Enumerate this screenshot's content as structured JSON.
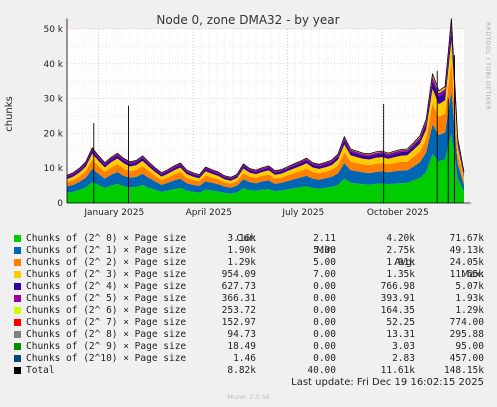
{
  "title": "Node 0, zone DMA32 - by year",
  "ylabel": "chunks",
  "side_text": "RRDTOOL / TOBI OETIKER",
  "legend_headers": {
    "cur": "Cur:",
    "min": "Min:",
    "avg": "Avg:",
    "max": "Max:"
  },
  "legend": [
    {
      "name": "Chunks of (2^ 0) × Page size",
      "color": "#00cc00",
      "cur": "3.16k",
      "min": "2.11",
      "avg": "4.20k",
      "max": "71.67k"
    },
    {
      "name": "Chunks of (2^ 1) × Page size",
      "color": "#0066b3",
      "cur": "1.90k",
      "min": "5.00",
      "avg": "2.75k",
      "max": "49.13k"
    },
    {
      "name": "Chunks of (2^ 2) × Page size",
      "color": "#ff8000",
      "cur": "1.29k",
      "min": "5.00",
      "avg": "1.91k",
      "max": "24.05k"
    },
    {
      "name": "Chunks of (2^ 3) × Page size",
      "color": "#ffcc00",
      "cur": "954.09",
      "min": "7.00",
      "avg": "1.35k",
      "max": "11.65k"
    },
    {
      "name": "Chunks of (2^ 4) × Page size",
      "color": "#330099",
      "cur": "627.73",
      "min": "0.00",
      "avg": "766.98",
      "max": "5.07k"
    },
    {
      "name": "Chunks of (2^ 5) × Page size",
      "color": "#990099",
      "cur": "366.31",
      "min": "0.00",
      "avg": "393.91",
      "max": "1.93k"
    },
    {
      "name": "Chunks of (2^ 6) × Page size",
      "color": "#ccff00",
      "cur": "253.72",
      "min": "0.00",
      "avg": "164.35",
      "max": "1.29k"
    },
    {
      "name": "Chunks of (2^ 7) × Page size",
      "color": "#ff0000",
      "cur": "152.97",
      "min": "0.00",
      "avg": "52.25",
      "max": "774.00"
    },
    {
      "name": "Chunks of (2^ 8) × Page size",
      "color": "#808080",
      "cur": "94.73",
      "min": "0.00",
      "avg": "13.31",
      "max": "295.88"
    },
    {
      "name": "Chunks of (2^ 9) × Page size",
      "color": "#008f00",
      "cur": "18.49",
      "min": "0.00",
      "avg": "3.03",
      "max": "95.00"
    },
    {
      "name": "Chunks of (2^10) × Page size",
      "color": "#00487d",
      "cur": "1.46",
      "min": "0.00",
      "avg": "2.83",
      "max": "457.00"
    },
    {
      "name": "Total",
      "color": "#000000",
      "cur": "8.82k",
      "min": "40.00",
      "avg": "11.61k",
      "max": "148.15k"
    }
  ],
  "last_update": "Last update: Fri Dec 19 16:02:15 2025",
  "footer": "Munin 2.0.56",
  "chart_data": {
    "type": "area",
    "title": "Node 0, zone DMA32 - by year",
    "ylabel": "chunks",
    "ylim": [
      0,
      50000
    ],
    "yticks": [
      0,
      10000,
      20000,
      30000,
      40000,
      50000
    ],
    "ytick_labels": [
      "0",
      "10 k",
      "20 k",
      "30 k",
      "40 k",
      "50 k"
    ],
    "xlim_months": [
      0,
      12.6
    ],
    "xticks": [
      {
        "label": "January 2025",
        "month": 1.5
      },
      {
        "label": "April 2025",
        "month": 4.5
      },
      {
        "label": "July 2025",
        "month": 7.5
      },
      {
        "label": "October 2025",
        "month": 10.5
      }
    ],
    "x_months": [
      0,
      0.2,
      0.4,
      0.6,
      0.8,
      1.0,
      1.2,
      1.4,
      1.6,
      1.8,
      2.0,
      2.2,
      2.4,
      2.6,
      2.8,
      3.0,
      3.2,
      3.4,
      3.6,
      3.8,
      4.0,
      4.2,
      4.4,
      4.6,
      4.8,
      5.0,
      5.2,
      5.4,
      5.6,
      5.8,
      6.0,
      6.2,
      6.4,
      6.6,
      6.8,
      7.0,
      7.2,
      7.4,
      7.6,
      7.8,
      8.0,
      8.2,
      8.4,
      8.6,
      8.8,
      9.0,
      9.2,
      9.4,
      9.6,
      9.8,
      10.0,
      10.2,
      10.4,
      10.6,
      10.8,
      11.0,
      11.2,
      11.4,
      11.6,
      11.8,
      12.0,
      12.2,
      12.4,
      12.6
    ],
    "series": [
      {
        "name": "Chunks of (2^ 0) × Page size",
        "color": "#00cc00",
        "values": [
          3000,
          3200,
          3800,
          4500,
          6000,
          5200,
          4300,
          5000,
          5500,
          4800,
          4500,
          4600,
          5200,
          4400,
          3800,
          3200,
          3600,
          4000,
          4300,
          3500,
          3200,
          3000,
          3800,
          3600,
          3300,
          2900,
          2700,
          3100,
          4200,
          3700,
          3500,
          3800,
          4000,
          3400,
          3600,
          3900,
          4200,
          4500,
          4800,
          4300,
          4100,
          4400,
          4600,
          5200,
          7000,
          5800,
          5600,
          5400,
          5300,
          5500,
          5600,
          5400,
          5600,
          5700,
          5800,
          6500,
          7200,
          9000,
          14000,
          12000,
          12500,
          20000,
          7000,
          3200
        ]
      },
      {
        "name": "Chunks of (2^ 1) × Page size",
        "color": "#0066b3",
        "values": [
          1800,
          2000,
          2300,
          2800,
          3800,
          3200,
          2700,
          3100,
          3400,
          3000,
          2800,
          2900,
          3200,
          2800,
          2400,
          2000,
          2200,
          2500,
          2700,
          2200,
          2000,
          1900,
          2400,
          2200,
          2100,
          1800,
          1700,
          1900,
          2600,
          2300,
          2200,
          2400,
          2500,
          2100,
          2200,
          2400,
          2600,
          2800,
          3000,
          2700,
          2600,
          2700,
          2900,
          3300,
          4500,
          3600,
          3500,
          3400,
          3300,
          3400,
          3500,
          3400,
          3500,
          3600,
          3600,
          4000,
          4500,
          5600,
          8600,
          7500,
          7800,
          12300,
          4300,
          1900
        ]
      },
      {
        "name": "Chunks of (2^ 2) × Page size",
        "color": "#ff8000",
        "values": [
          1200,
          1400,
          1600,
          1900,
          2600,
          2200,
          1900,
          2100,
          2300,
          2100,
          1900,
          2000,
          2200,
          1900,
          1600,
          1400,
          1500,
          1700,
          1900,
          1500,
          1400,
          1300,
          1700,
          1500,
          1400,
          1200,
          1200,
          1300,
          1800,
          1600,
          1500,
          1600,
          1700,
          1500,
          1500,
          1700,
          1800,
          1900,
          2100,
          1900,
          1800,
          1900,
          2000,
          2300,
          3100,
          2500,
          2400,
          2300,
          2300,
          2400,
          2400,
          2300,
          2400,
          2500,
          2500,
          2800,
          3100,
          3900,
          6000,
          5200,
          5400,
          8500,
          3000,
          1300
        ]
      },
      {
        "name": "Chunks of (2^ 3) × Page size",
        "color": "#ffcc00",
        "values": [
          900,
          1000,
          1100,
          1300,
          1800,
          1500,
          1300,
          1500,
          1600,
          1500,
          1300,
          1400,
          1500,
          1300,
          1100,
          1000,
          1100,
          1200,
          1300,
          1100,
          1000,
          900,
          1200,
          1100,
          1000,
          900,
          800,
          900,
          1300,
          1100,
          1100,
          1100,
          1200,
          1100,
          1100,
          1200,
          1300,
          1400,
          1500,
          1300,
          1300,
          1300,
          1400,
          1600,
          2200,
          1800,
          1700,
          1600,
          1600,
          1700,
          1700,
          1600,
          1700,
          1800,
          1800,
          2000,
          2200,
          2700,
          4200,
          3700,
          3800,
          6000,
          2100,
          950
        ]
      },
      {
        "name": "Chunks of (2^ 4) × Page size",
        "color": "#330099",
        "values": [
          600,
          650,
          700,
          800,
          1000,
          900,
          800,
          850,
          900,
          850,
          800,
          800,
          850,
          780,
          700,
          650,
          680,
          720,
          760,
          680,
          620,
          600,
          720,
          680,
          640,
          580,
          560,
          600,
          780,
          700,
          680,
          700,
          740,
          680,
          680,
          720,
          780,
          820,
          880,
          800,
          780,
          800,
          840,
          950,
          1300,
          1050,
          1000,
          950,
          940,
          980,
          1000,
          950,
          1000,
          1050,
          1050,
          1150,
          1300,
          1600,
          2500,
          2200,
          2300,
          3500,
          1200,
          630
        ]
      },
      {
        "name": "Chunks of (2^ 5) × Page size",
        "color": "#990099",
        "values": [
          350,
          360,
          380,
          400,
          450,
          420,
          400,
          410,
          430,
          410,
          400,
          400,
          420,
          390,
          370,
          350,
          360,
          380,
          390,
          360,
          340,
          330,
          370,
          360,
          350,
          330,
          320,
          330,
          380,
          360,
          360,
          370,
          380,
          360,
          360,
          380,
          400,
          410,
          440,
          400,
          400,
          410,
          420,
          470,
          600,
          500,
          480,
          460,
          460,
          470,
          480,
          460,
          480,
          500,
          500,
          540,
          600,
          750,
          1100,
          950,
          1000,
          1500,
          560,
          370
        ]
      },
      {
        "name": "Chunks of (2^ 6) × Page size",
        "color": "#ccff00",
        "values": [
          60,
          70,
          80,
          90,
          130,
          110,
          100,
          110,
          120,
          110,
          100,
          100,
          110,
          100,
          90,
          80,
          90,
          95,
          100,
          90,
          80,
          80,
          95,
          90,
          85,
          80,
          75,
          80,
          100,
          90,
          90,
          95,
          100,
          90,
          90,
          100,
          110,
          115,
          130,
          115,
          110,
          115,
          120,
          150,
          220,
          180,
          170,
          160,
          160,
          170,
          170,
          160,
          170,
          180,
          190,
          220,
          260,
          330,
          520,
          450,
          470,
          800,
          300,
          250
        ]
      },
      {
        "name": "Chunks of (2^ 7) × Page size",
        "color": "#ff0000",
        "values": [
          20,
          22,
          25,
          28,
          40,
          35,
          30,
          33,
          36,
          33,
          30,
          30,
          33,
          30,
          28,
          25,
          27,
          29,
          30,
          27,
          25,
          24,
          29,
          27,
          26,
          24,
          23,
          24,
          30,
          27,
          27,
          28,
          30,
          27,
          27,
          30,
          33,
          35,
          40,
          35,
          33,
          35,
          36,
          45,
          70,
          55,
          52,
          50,
          50,
          52,
          52,
          50,
          52,
          55,
          58,
          70,
          85,
          110,
          180,
          160,
          170,
          300,
          120,
          150
        ]
      },
      {
        "name": "Chunks of (2^ 8) × Page size",
        "color": "#808080",
        "values": [
          5,
          5,
          6,
          7,
          10,
          9,
          8,
          8,
          9,
          8,
          8,
          8,
          8,
          8,
          7,
          6,
          7,
          7,
          8,
          7,
          6,
          6,
          7,
          7,
          6,
          6,
          6,
          6,
          8,
          7,
          7,
          7,
          8,
          7,
          7,
          8,
          8,
          9,
          10,
          9,
          8,
          9,
          9,
          11,
          17,
          14,
          13,
          12,
          12,
          13,
          13,
          12,
          13,
          14,
          15,
          18,
          22,
          30,
          50,
          45,
          48,
          90,
          40,
          95
        ]
      },
      {
        "name": "Chunks of (2^ 9) × Page size",
        "color": "#008f00",
        "values": [
          1,
          1,
          1,
          2,
          2,
          2,
          2,
          2,
          2,
          2,
          2,
          2,
          2,
          2,
          2,
          1,
          2,
          2,
          2,
          2,
          1,
          1,
          2,
          2,
          1,
          1,
          1,
          1,
          2,
          2,
          2,
          2,
          2,
          2,
          2,
          2,
          2,
          2,
          2,
          2,
          2,
          2,
          2,
          3,
          4,
          3,
          3,
          3,
          3,
          3,
          3,
          3,
          3,
          3,
          3,
          4,
          5,
          7,
          12,
          10,
          11,
          25,
          10,
          18
        ]
      },
      {
        "name": "Chunks of (2^10) × Page size",
        "color": "#00487d",
        "values": [
          1,
          1,
          1,
          1,
          2,
          2,
          1,
          2,
          2,
          2,
          1,
          1,
          2,
          1,
          1,
          1,
          1,
          1,
          1,
          1,
          1,
          1,
          1,
          1,
          1,
          1,
          1,
          1,
          1,
          1,
          1,
          1,
          1,
          1,
          1,
          1,
          1,
          1,
          2,
          1,
          1,
          1,
          1,
          2,
          3,
          2,
          2,
          2,
          2,
          2,
          2,
          2,
          2,
          2,
          2,
          3,
          4,
          6,
          10,
          8,
          9,
          20,
          6,
          1
        ]
      }
    ],
    "spikes": [
      {
        "month": 0.85,
        "total": 23000
      },
      {
        "month": 1.95,
        "total": 28000
      },
      {
        "month": 10.05,
        "total": 28500
      },
      {
        "month": 11.75,
        "total": 38000
      },
      {
        "month": 12.3,
        "total": 42500
      },
      {
        "month": 12.1,
        "total": 30000
      }
    ]
  }
}
